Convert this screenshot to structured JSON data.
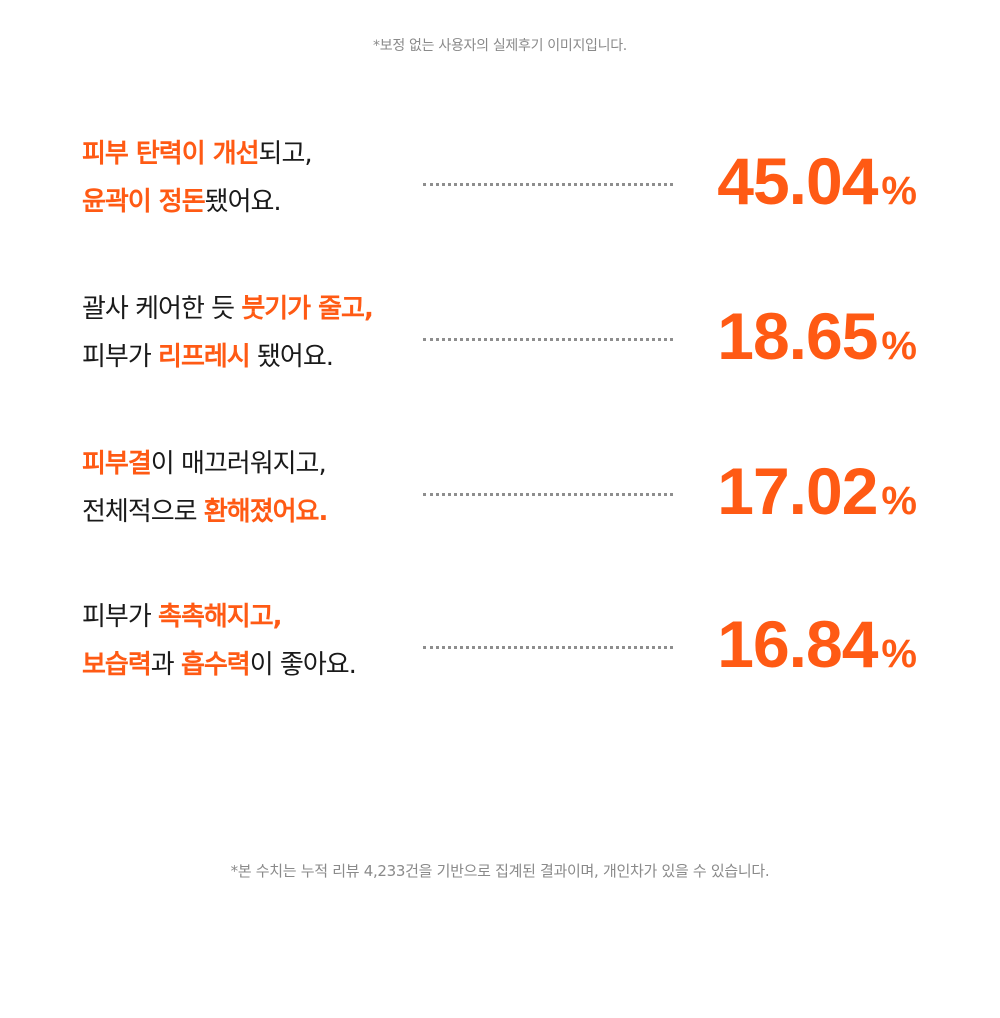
{
  "top_note": "*보정 없는 사용자의 실제후기 이미지입니다.",
  "stats": [
    {
      "lines": [
        [
          {
            "text": "피부 탄력이 개선",
            "hl": true
          },
          {
            "text": "되고,",
            "hl": false
          }
        ],
        [
          {
            "text": "윤곽이 정돈",
            "hl": true
          },
          {
            "text": "됐어요.",
            "hl": false
          }
        ]
      ],
      "value": "45.04",
      "unit": "%"
    },
    {
      "lines": [
        [
          {
            "text": "괄사 케어한 듯 ",
            "hl": false
          },
          {
            "text": "붓기가 줄고,",
            "hl": true
          }
        ],
        [
          {
            "text": "피부가 ",
            "hl": false
          },
          {
            "text": "리프레시",
            "hl": true
          },
          {
            "text": " 됐어요.",
            "hl": false
          }
        ]
      ],
      "value": "18.65",
      "unit": "%"
    },
    {
      "lines": [
        [
          {
            "text": "피부결",
            "hl": true
          },
          {
            "text": "이 매끄러워지고,",
            "hl": false
          }
        ],
        [
          {
            "text": "전체적으로 ",
            "hl": false
          },
          {
            "text": "환해졌어요.",
            "hl": true
          }
        ]
      ],
      "value": "17.02",
      "unit": "%"
    },
    {
      "lines": [
        [
          {
            "text": "피부가 ",
            "hl": false
          },
          {
            "text": "촉촉해지고,",
            "hl": true
          }
        ],
        [
          {
            "text": "보습력",
            "hl": true
          },
          {
            "text": "과 ",
            "hl": false
          },
          {
            "text": "흡수력",
            "hl": true
          },
          {
            "text": "이 좋아요.",
            "hl": false
          }
        ]
      ],
      "value": "16.84",
      "unit": "%"
    }
  ],
  "bottom_note": "*본 수치는 누적 리뷰 4,233건을 기반으로 집계된 결과이며, 개인차가 있을 수 있습니다.",
  "colors": {
    "accent": "#ff5a14",
    "text": "#1a1a1a",
    "note": "#8a8a8a",
    "dots": "#8e8e8e"
  }
}
